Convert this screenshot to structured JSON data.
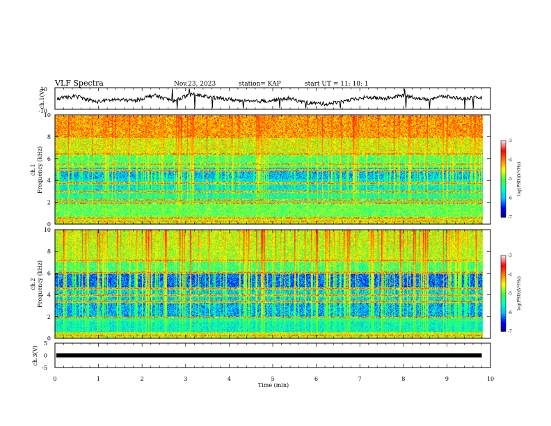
{
  "header": {
    "title": "VLF Spectra",
    "date": "Nov.23, 2023",
    "station": "station= KAP",
    "start": "start  UT  =   11: 10: 1"
  },
  "chart_data": [
    {
      "type": "line",
      "panel": "ch1-waveform",
      "ylabel": "ch.1(V)",
      "ylim": [
        -10,
        10
      ],
      "y_ticks": [
        "10",
        "-10"
      ],
      "x_range_min": [
        0,
        9.8
      ],
      "approx_level": [
        0,
        2,
        -3,
        -1,
        -2,
        3,
        -2,
        4,
        1,
        -1,
        -3,
        -2,
        0,
        -4,
        -5,
        -2,
        1,
        0,
        3,
        -1,
        2,
        0,
        1
      ]
    },
    {
      "type": "heatmap",
      "panel": "ch1-spectrogram",
      "ylabel": "ch.1\nFrequency (kHz)",
      "ylim": [
        0,
        10
      ],
      "y_ticks": [
        "0",
        "2",
        "4",
        "6",
        "8",
        "10"
      ],
      "colorbar_range_log": [
        -7,
        -3
      ],
      "colorbar_ticks": [
        "-3",
        "-4",
        "-5",
        "-6",
        "-7"
      ],
      "colorbar_label": "log(PSD)(V²/Hz)",
      "line_frequencies_khz": [
        0.3,
        0.6,
        1.95,
        2.25,
        3.0,
        3.8,
        5.0,
        5.55,
        6.5
      ]
    },
    {
      "type": "heatmap",
      "panel": "ch2-spectrogram",
      "ylabel": "ch.2\nFrequency (kHz)",
      "ylim": [
        0,
        10
      ],
      "y_ticks": [
        "0",
        "2",
        "4",
        "6",
        "8",
        "10"
      ],
      "colorbar_range_log": [
        -7,
        -3
      ],
      "colorbar_ticks": [
        "-3",
        "-4",
        "-5",
        "-6",
        "-7"
      ],
      "colorbar_label": "log(PSD)(V²/Hz)",
      "line_frequencies_khz": [
        0.3,
        1.95,
        3.4,
        4.0,
        4.6,
        6.1,
        7.2
      ]
    },
    {
      "type": "line",
      "panel": "ch3-waveform",
      "ylabel": "ch.3(V)",
      "ylim": [
        -5,
        5
      ],
      "y_ticks": [
        "5",
        "0",
        "-5"
      ],
      "x_range_min": [
        0,
        9.8
      ],
      "approx_level": 0
    }
  ],
  "x_axis": {
    "xlabel": "Time (min)",
    "xlim": [
      0,
      10
    ],
    "ticks": [
      "0",
      "1",
      "2",
      "3",
      "4",
      "5",
      "6",
      "7",
      "8",
      "9",
      "10"
    ]
  },
  "colors": {
    "colormap": [
      "#00008b",
      "#0000ff",
      "#00c0ff",
      "#00ffc0",
      "#40ff40",
      "#ffff00",
      "#ff8000",
      "#ff0000",
      "#ffe0e0"
    ],
    "waveform": "#000000",
    "frame": "#000000"
  }
}
